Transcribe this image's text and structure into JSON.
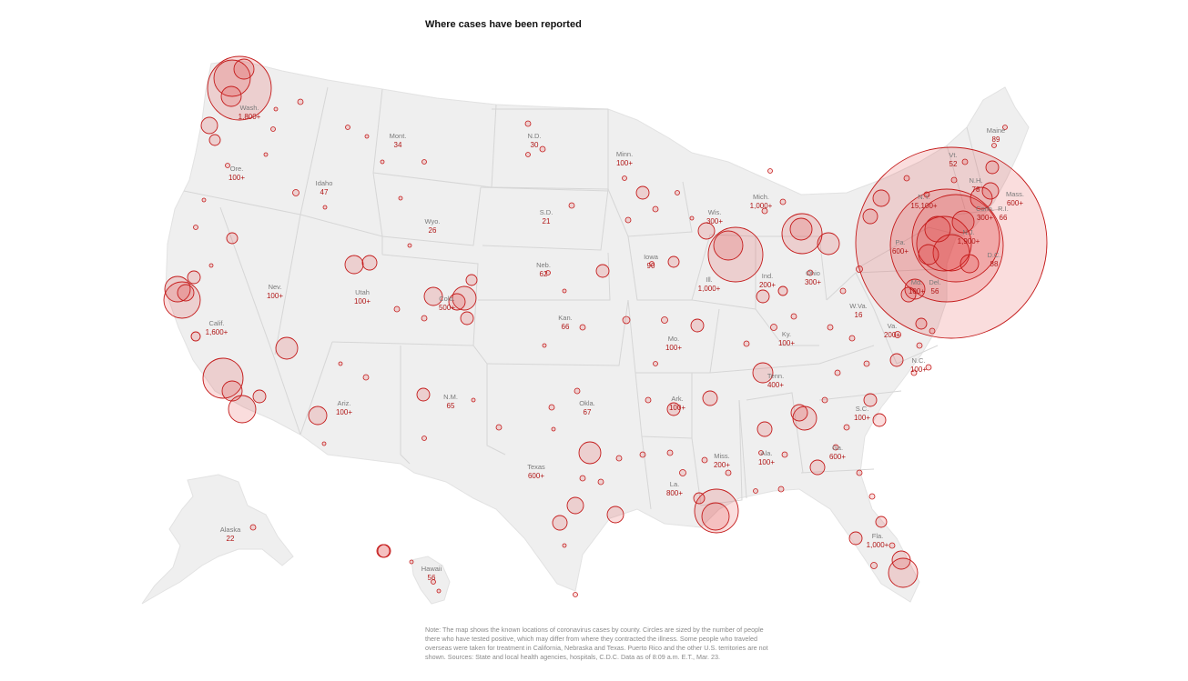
{
  "title": "Where cases have been reported",
  "note": "Note: The map shows the known locations of coronavirus cases by county. Circles are sized by the number of people there who have tested positive, which may differ from where they contracted the illness. Some people who traveled overseas were taken for treatment in California, Nebraska and Texas. Puerto Rico and the other U.S. territories are not shown. Sources: State and local health agencies, hospitals, C.D.C. Data as of 8:09 a.m. E.T., Mar. 23.",
  "colors": {
    "land": "#efefef",
    "border": "#d6d6d6",
    "bubble_fill": "rgba(226, 42, 42, 0.16)",
    "bubble_stroke": "#c41b1b",
    "count_text": "#b01515",
    "label_text": "#7a7a7a"
  },
  "states": [
    {
      "label": "Wash.",
      "count": "1,800+"
    },
    {
      "label": "Ore.",
      "count": "100+"
    },
    {
      "label": "Calif.",
      "count": "1,600+"
    },
    {
      "label": "Nev.",
      "count": "100+"
    },
    {
      "label": "Idaho",
      "count": "47"
    },
    {
      "label": "Mont.",
      "count": "34"
    },
    {
      "label": "Wyo.",
      "count": "26"
    },
    {
      "label": "Utah",
      "count": "100+"
    },
    {
      "label": "Colo.",
      "count": "500+"
    },
    {
      "label": "Ariz.",
      "count": "100+"
    },
    {
      "label": "N.M.",
      "count": "65"
    },
    {
      "label": "N.D.",
      "count": "30"
    },
    {
      "label": "S.D.",
      "count": "21"
    },
    {
      "label": "Neb.",
      "count": "62"
    },
    {
      "label": "Kan.",
      "count": "66"
    },
    {
      "label": "Okla.",
      "count": "67"
    },
    {
      "label": "Texas",
      "count": "600+"
    },
    {
      "label": "Minn.",
      "count": "100+"
    },
    {
      "label": "Iowa",
      "count": "90"
    },
    {
      "label": "Mo.",
      "count": "100+"
    },
    {
      "label": "Ark.",
      "count": "100+"
    },
    {
      "label": "La.",
      "count": "800+"
    },
    {
      "label": "Wis.",
      "count": "300+"
    },
    {
      "label": "Ill.",
      "count": "1,000+"
    },
    {
      "label": "Mich.",
      "count": "1,000+"
    },
    {
      "label": "Ind.",
      "count": "200+"
    },
    {
      "label": "Ohio",
      "count": "300+"
    },
    {
      "label": "Ky.",
      "count": "100+"
    },
    {
      "label": "Tenn.",
      "count": "400+"
    },
    {
      "label": "Miss.",
      "count": "200+"
    },
    {
      "label": "Ala.",
      "count": "100+"
    },
    {
      "label": "Ga.",
      "count": "600+"
    },
    {
      "label": "Fla.",
      "count": "1,000+"
    },
    {
      "label": "S.C.",
      "count": "100+"
    },
    {
      "label": "N.C.",
      "count": "100+"
    },
    {
      "label": "Va.",
      "count": "200+"
    },
    {
      "label": "W.Va.",
      "count": "16"
    },
    {
      "label": "Pa.",
      "count": "600+"
    },
    {
      "label": "N.Y.",
      "count": "15,100+"
    },
    {
      "label": "Vt.",
      "count": "52"
    },
    {
      "label": "N.H.",
      "count": "78"
    },
    {
      "label": "Maine",
      "count": "89"
    },
    {
      "label": "Mass.",
      "count": "600+"
    },
    {
      "label": "Del.",
      "count": "56"
    },
    {
      "label": "Md.",
      "count": "100+"
    },
    {
      "label": "N.J.",
      "count": "1,900+"
    },
    {
      "label": "Conn.",
      "count": "300+"
    },
    {
      "label": "R.I.",
      "count": "66"
    },
    {
      "label": "D.C.",
      "count": "88"
    },
    {
      "label": "Alaska",
      "count": "22"
    },
    {
      "label": "Hawaii",
      "count": "56"
    }
  ]
}
